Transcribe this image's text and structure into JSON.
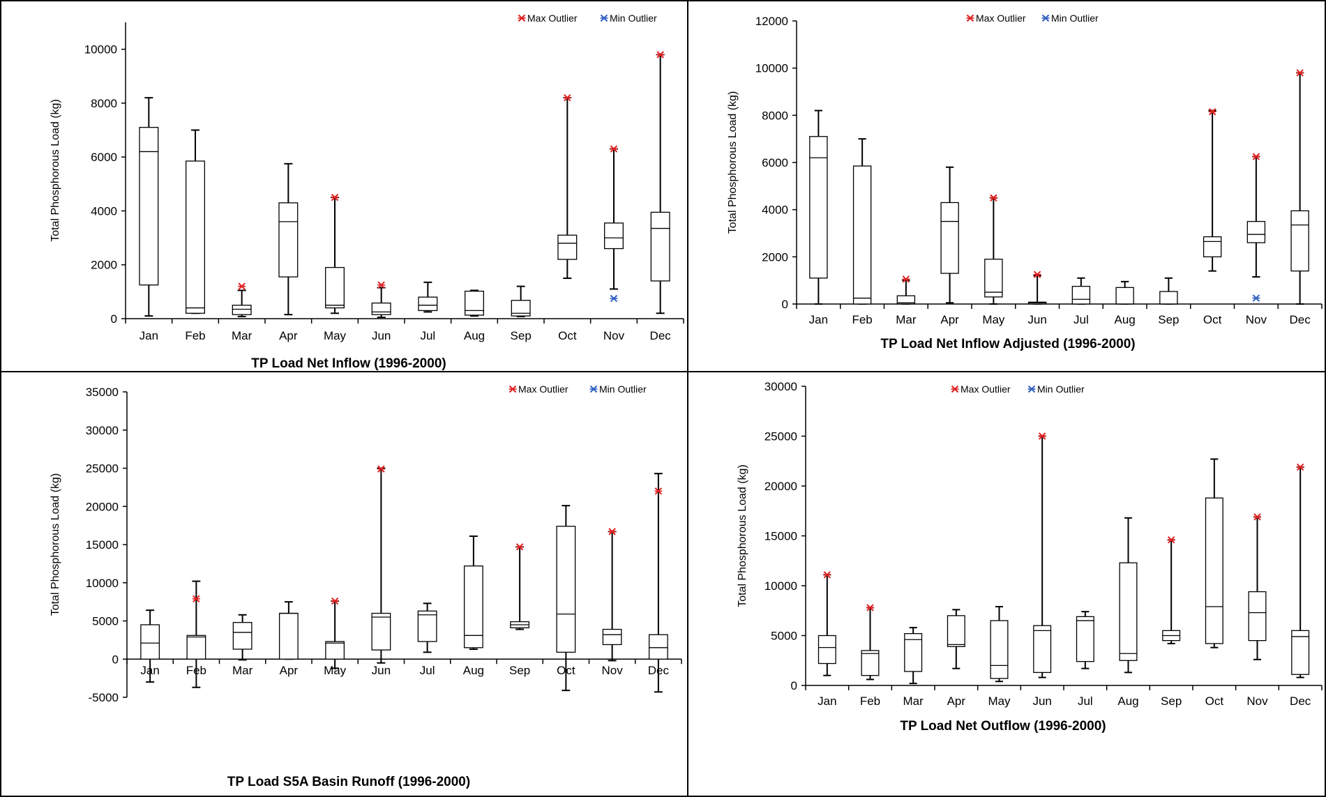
{
  "chart_data": [
    {
      "type": "boxplot",
      "title": "TP Load Net Inflow (1996-2000)",
      "ylabel": "Total Phosphorous Load (kg)",
      "ylim": [
        0,
        11000
      ],
      "yticks": [
        0,
        2000,
        4000,
        6000,
        8000,
        10000
      ],
      "categories": [
        "Jan",
        "Feb",
        "Mar",
        "Apr",
        "May",
        "Jun",
        "Jul",
        "Aug",
        "Sep",
        "Oct",
        "Nov",
        "Dec"
      ],
      "legend": {
        "max_label": "Max Outlier",
        "min_label": "Min Outlier",
        "position": "top-right"
      },
      "boxes": [
        {
          "whisker_low": 100,
          "q1": 1250,
          "median": 6200,
          "q3": 7100,
          "whisker_high": 8200
        },
        {
          "whisker_low": 200,
          "q1": 200,
          "median": 400,
          "q3": 5850,
          "whisker_high": 7000
        },
        {
          "whisker_low": 80,
          "q1": 150,
          "median": 350,
          "q3": 500,
          "whisker_high": 1050
        },
        {
          "whisker_low": 150,
          "q1": 1550,
          "median": 3600,
          "q3": 4300,
          "whisker_high": 5750
        },
        {
          "whisker_low": 200,
          "q1": 400,
          "median": 500,
          "q3": 1900,
          "whisker_high": 4500
        },
        {
          "whisker_low": 50,
          "q1": 150,
          "median": 250,
          "q3": 580,
          "whisker_high": 1150
        },
        {
          "whisker_low": 250,
          "q1": 300,
          "median": 500,
          "q3": 800,
          "whisker_high": 1350
        },
        {
          "whisker_low": 100,
          "q1": 130,
          "median": 300,
          "q3": 1020,
          "whisker_high": 1050
        },
        {
          "whisker_low": 80,
          "q1": 100,
          "median": 200,
          "q3": 680,
          "whisker_high": 1200
        },
        {
          "whisker_low": 1500,
          "q1": 2200,
          "median": 2800,
          "q3": 3100,
          "whisker_high": 8200
        },
        {
          "whisker_low": 1100,
          "q1": 2600,
          "median": 3000,
          "q3": 3550,
          "whisker_high": 6300
        },
        {
          "whisker_low": 200,
          "q1": 1400,
          "median": 3350,
          "q3": 3950,
          "whisker_high": 9800
        }
      ],
      "max_outliers": [
        {
          "category": "Mar",
          "value": 1200
        },
        {
          "category": "May",
          "value": 4500
        },
        {
          "category": "Jun",
          "value": 1250
        },
        {
          "category": "Oct",
          "value": 8200
        },
        {
          "category": "Nov",
          "value": 6300
        },
        {
          "category": "Dec",
          "value": 9800
        }
      ],
      "min_outliers": [
        {
          "category": "Nov",
          "value": 750
        }
      ],
      "colors": {
        "max": "#e02020",
        "min": "#3060c0"
      }
    },
    {
      "type": "boxplot",
      "title": "TP Load Net Inflow Adjusted (1996-2000)",
      "ylabel": "Total Phosphorous Load (kg)",
      "ylim": [
        0,
        12000
      ],
      "yticks": [
        0,
        2000,
        4000,
        6000,
        8000,
        10000,
        12000
      ],
      "categories": [
        "Jan",
        "Feb",
        "Mar",
        "Apr",
        "May",
        "Jun",
        "Jul",
        "Aug",
        "Sep",
        "Oct",
        "Nov",
        "Dec"
      ],
      "legend": {
        "max_label": "Max Outlier",
        "min_label": "Min Outlier",
        "position": "top-right"
      },
      "boxes": [
        {
          "whisker_low": 0,
          "q1": 1100,
          "median": 6200,
          "q3": 7100,
          "whisker_high": 8200
        },
        {
          "whisker_low": 0,
          "q1": 0,
          "median": 250,
          "q3": 5850,
          "whisker_high": 7000
        },
        {
          "whisker_low": 0,
          "q1": 0,
          "median": 50,
          "q3": 350,
          "whisker_high": 1000
        },
        {
          "whisker_low": 50,
          "q1": 1300,
          "median": 3500,
          "q3": 4300,
          "whisker_high": 5800
        },
        {
          "whisker_low": 0,
          "q1": 300,
          "median": 500,
          "q3": 1900,
          "whisker_high": 4500
        },
        {
          "whisker_low": 0,
          "q1": 0,
          "median": 50,
          "q3": 80,
          "whisker_high": 1200
        },
        {
          "whisker_low": 0,
          "q1": 0,
          "median": 200,
          "q3": 750,
          "whisker_high": 1100
        },
        {
          "whisker_low": 0,
          "q1": 0,
          "median": 0,
          "q3": 700,
          "whisker_high": 950
        },
        {
          "whisker_low": 0,
          "q1": 0,
          "median": 0,
          "q3": 530,
          "whisker_high": 1100
        },
        {
          "whisker_low": 1400,
          "q1": 2000,
          "median": 2650,
          "q3": 2850,
          "whisker_high": 8200
        },
        {
          "whisker_low": 1150,
          "q1": 2600,
          "median": 2950,
          "q3": 3500,
          "whisker_high": 6250
        },
        {
          "whisker_low": 0,
          "q1": 1400,
          "median": 3350,
          "q3": 3950,
          "whisker_high": 9800
        }
      ],
      "max_outliers": [
        {
          "category": "Mar",
          "value": 1050
        },
        {
          "category": "May",
          "value": 4500
        },
        {
          "category": "Jun",
          "value": 1250
        },
        {
          "category": "Oct",
          "value": 8150
        },
        {
          "category": "Nov",
          "value": 6250
        },
        {
          "category": "Dec",
          "value": 9800
        }
      ],
      "min_outliers": [
        {
          "category": "Nov",
          "value": 250
        }
      ],
      "colors": {
        "max": "#e02020",
        "min": "#3060c0"
      }
    },
    {
      "type": "boxplot",
      "title": "TP Load S5A Basin Runoff (1996-2000)",
      "ylabel": "Total Phosphorous Load (kg)",
      "ylim": [
        -5000,
        35000
      ],
      "yticks": [
        -5000,
        0,
        5000,
        10000,
        15000,
        20000,
        25000,
        30000,
        35000
      ],
      "categories": [
        "Jan",
        "Feb",
        "Mar",
        "Apr",
        "May",
        "Jun",
        "Jul",
        "Aug",
        "Sep",
        "Oct",
        "Nov",
        "Dec"
      ],
      "legend": {
        "max_label": "Max Outlier",
        "min_label": "Min Outlier",
        "position": "top-right"
      },
      "boxes": [
        {
          "whisker_low": -3000,
          "q1": 0,
          "median": 2100,
          "q3": 4500,
          "whisker_high": 6400
        },
        {
          "whisker_low": -3700,
          "q1": 0,
          "median": 2900,
          "q3": 3100,
          "whisker_high": 10200
        },
        {
          "whisker_low": -100,
          "q1": 1300,
          "median": 3500,
          "q3": 4800,
          "whisker_high": 5800
        },
        {
          "whisker_low": 0,
          "q1": 0,
          "median": 6000,
          "q3": 6000,
          "whisker_high": 7500
        },
        {
          "whisker_low": -1200,
          "q1": 0,
          "median": 2100,
          "q3": 2300,
          "whisker_high": 7600
        },
        {
          "whisker_low": -500,
          "q1": 1200,
          "median": 5500,
          "q3": 6000,
          "whisker_high": 25000
        },
        {
          "whisker_low": 900,
          "q1": 2300,
          "median": 5800,
          "q3": 6300,
          "whisker_high": 7300
        },
        {
          "whisker_low": 1300,
          "q1": 1500,
          "median": 3100,
          "q3": 12200,
          "whisker_high": 16100
        },
        {
          "whisker_low": 3900,
          "q1": 4100,
          "median": 4500,
          "q3": 4900,
          "whisker_high": 14700
        },
        {
          "whisker_low": -4100,
          "q1": 900,
          "median": 5900,
          "q3": 17400,
          "whisker_high": 20100
        },
        {
          "whisker_low": -200,
          "q1": 1900,
          "median": 3200,
          "q3": 3900,
          "whisker_high": 16700
        },
        {
          "whisker_low": -4300,
          "q1": 0,
          "median": 1500,
          "q3": 3200,
          "whisker_high": 24300
        }
      ],
      "max_outliers": [
        {
          "category": "Feb",
          "value": 7900
        },
        {
          "category": "May",
          "value": 7600
        },
        {
          "category": "Jun",
          "value": 24900
        },
        {
          "category": "Sep",
          "value": 14700
        },
        {
          "category": "Nov",
          "value": 16700
        },
        {
          "category": "Dec",
          "value": 22000
        }
      ],
      "min_outliers": [],
      "colors": {
        "max": "#e02020",
        "min": "#3060c0"
      }
    },
    {
      "type": "boxplot",
      "title": "TP Load  Net Outflow  (1996-2000)",
      "ylabel": "Total Phosphorous Load (kg)",
      "ylim": [
        0,
        30000
      ],
      "yticks": [
        0,
        5000,
        10000,
        15000,
        20000,
        25000,
        30000
      ],
      "categories": [
        "Jan",
        "Feb",
        "Mar",
        "Apr",
        "May",
        "Jun",
        "Jul",
        "Aug",
        "Sep",
        "Oct",
        "Nov",
        "Dec"
      ],
      "legend": {
        "max_label": "Max Outlier",
        "min_label": "Min Outlier",
        "position": "top-right"
      },
      "boxes": [
        {
          "whisker_low": 1000,
          "q1": 2200,
          "median": 3800,
          "q3": 5000,
          "whisker_high": 11100
        },
        {
          "whisker_low": 600,
          "q1": 1000,
          "median": 3200,
          "q3": 3500,
          "whisker_high": 7800
        },
        {
          "whisker_low": 200,
          "q1": 1400,
          "median": 4600,
          "q3": 5200,
          "whisker_high": 5800
        },
        {
          "whisker_low": 1700,
          "q1": 3900,
          "median": 4100,
          "q3": 7000,
          "whisker_high": 7600
        },
        {
          "whisker_low": 400,
          "q1": 700,
          "median": 2000,
          "q3": 6500,
          "whisker_high": 7900
        },
        {
          "whisker_low": 800,
          "q1": 1300,
          "median": 5500,
          "q3": 6000,
          "whisker_high": 25000
        },
        {
          "whisker_low": 1700,
          "q1": 2400,
          "median": 6500,
          "q3": 6900,
          "whisker_high": 7400
        },
        {
          "whisker_low": 1300,
          "q1": 2500,
          "median": 3200,
          "q3": 12300,
          "whisker_high": 16800
        },
        {
          "whisker_low": 4200,
          "q1": 4500,
          "median": 5000,
          "q3": 5500,
          "whisker_high": 14600
        },
        {
          "whisker_low": 3800,
          "q1": 4200,
          "median": 7900,
          "q3": 18800,
          "whisker_high": 22700
        },
        {
          "whisker_low": 2600,
          "q1": 4500,
          "median": 7300,
          "q3": 9400,
          "whisker_high": 16900
        },
        {
          "whisker_low": 800,
          "q1": 1100,
          "median": 4900,
          "q3": 5500,
          "whisker_high": 21900
        }
      ],
      "max_outliers": [
        {
          "category": "Jan",
          "value": 11100
        },
        {
          "category": "Feb",
          "value": 7800
        },
        {
          "category": "Jun",
          "value": 25000
        },
        {
          "category": "Sep",
          "value": 14600
        },
        {
          "category": "Nov",
          "value": 16900
        },
        {
          "category": "Dec",
          "value": 21900
        }
      ],
      "min_outliers": [],
      "colors": {
        "max": "#e02020",
        "min": "#3060c0"
      }
    }
  ]
}
